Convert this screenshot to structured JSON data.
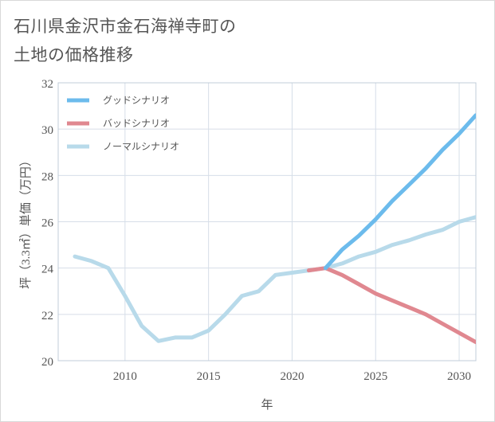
{
  "title_line1": "石川県金沢市金石海禅寺町の",
  "title_line2": "土地の価格推移",
  "chart_data": {
    "type": "line",
    "xlabel": "年",
    "ylabel": "坪（3.3㎡）単価（万円）",
    "xlim": [
      2006,
      2031
    ],
    "ylim": [
      20,
      32
    ],
    "xticks": [
      2010,
      2015,
      2020,
      2025,
      2030
    ],
    "yticks": [
      20,
      22,
      24,
      26,
      28,
      30,
      32
    ],
    "grid": true,
    "legend_position": "top-left",
    "series": [
      {
        "name": "グッドシナリオ",
        "color": "#6cbbec",
        "x": [
          2022,
          2023,
          2024,
          2025,
          2026,
          2027,
          2028,
          2029,
          2030,
          2031
        ],
        "y": [
          24.0,
          24.8,
          25.4,
          26.1,
          26.9,
          27.6,
          28.3,
          29.1,
          29.8,
          30.6
        ]
      },
      {
        "name": "バッドシナリオ",
        "color": "#e08890",
        "x": [
          2021,
          2022,
          2023,
          2024,
          2025,
          2026,
          2027,
          2028,
          2029,
          2030,
          2031
        ],
        "y": [
          23.9,
          24.0,
          23.7,
          23.3,
          22.9,
          22.6,
          22.3,
          22.0,
          21.6,
          21.2,
          20.8
        ]
      },
      {
        "name": "ノーマルシナリオ",
        "color": "#b8daea",
        "x": [
          2007,
          2008,
          2009,
          2010,
          2011,
          2012,
          2013,
          2014,
          2015,
          2016,
          2017,
          2018,
          2019,
          2020,
          2021,
          2022,
          2023,
          2024,
          2025,
          2026,
          2027,
          2028,
          2029,
          2030,
          2031
        ],
        "y": [
          24.5,
          24.3,
          24.0,
          22.8,
          21.5,
          20.85,
          21.0,
          21.0,
          21.3,
          22.0,
          22.8,
          23.0,
          23.7,
          23.8,
          23.9,
          24.0,
          24.2,
          24.5,
          24.7,
          25.0,
          25.2,
          25.45,
          25.65,
          26.0,
          26.2
        ]
      }
    ]
  }
}
